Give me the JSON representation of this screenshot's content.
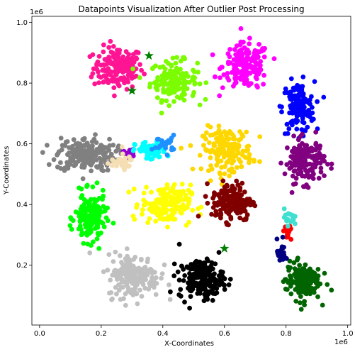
{
  "chart_data": {
    "type": "scatter",
    "title": "Datapoints Visualization After Outlier Post Processing",
    "xlabel": "X-Coordinates",
    "ylabel": "Y-Coordinates",
    "x_offset_label": "1e6",
    "y_offset_label": "1e6",
    "xlim": [
      -25000,
      1010000
    ],
    "ylim": [
      3000,
      1020000
    ],
    "x_ticks": [
      0.0,
      0.2,
      0.4,
      0.6,
      0.8,
      1.0
    ],
    "y_ticks": [
      0.2,
      0.4,
      0.6,
      0.8,
      1.0
    ],
    "grid": false,
    "legend": "none",
    "clusters": [
      {
        "color": "#ff1493",
        "center": [
          255000,
          850000
        ],
        "spread": [
          40000,
          35000
        ],
        "count": 170
      },
      {
        "color": "#7cfc00",
        "center": [
          435000,
          810000
        ],
        "spread": [
          38000,
          32000
        ],
        "count": 150
      },
      {
        "color": "#ff00ff",
        "center": [
          670000,
          855000
        ],
        "spread": [
          38000,
          38000
        ],
        "count": 170
      },
      {
        "color": "#0000ff",
        "center": [
          840000,
          720000
        ],
        "spread": [
          26000,
          42000
        ],
        "count": 140
      },
      {
        "color": "#808080",
        "center": [
          150000,
          565000
        ],
        "spread": [
          48000,
          28000
        ],
        "count": 190
      },
      {
        "color": "#9400d3",
        "center": [
          290000,
          570000
        ],
        "spread": [
          10000,
          9000
        ],
        "count": 14
      },
      {
        "color": "#00ffff",
        "center": [
          360000,
          575000
        ],
        "spread": [
          25000,
          16000
        ],
        "count": 70
      },
      {
        "color": "#1e90ff",
        "center": [
          405000,
          600000
        ],
        "spread": [
          18000,
          14000
        ],
        "count": 24
      },
      {
        "color": "#ffd700",
        "center": [
          610000,
          580000
        ],
        "spread": [
          40000,
          36000
        ],
        "count": 170
      },
      {
        "color": "#800080",
        "center": [
          860000,
          545000
        ],
        "spread": [
          32000,
          36000
        ],
        "count": 160
      },
      {
        "color": "#00ff00",
        "center": [
          165000,
          355000
        ],
        "spread": [
          25000,
          40000
        ],
        "count": 150
      },
      {
        "color": "#ffff00",
        "center": [
          410000,
          400000
        ],
        "spread": [
          40000,
          32000
        ],
        "count": 170
      },
      {
        "color": "#800000",
        "center": [
          625000,
          410000
        ],
        "spread": [
          33000,
          32000
        ],
        "count": 170
      },
      {
        "color": "#c0c0c0",
        "center": [
          305000,
          165000
        ],
        "spread": [
          42000,
          36000
        ],
        "count": 190
      },
      {
        "color": "#000000",
        "center": [
          525000,
          155000
        ],
        "spread": [
          36000,
          32000
        ],
        "count": 180
      },
      {
        "color": "#006400",
        "center": [
          855000,
          150000
        ],
        "spread": [
          28000,
          32000
        ],
        "count": 150
      },
      {
        "color": "#f5deb3",
        "center": [
          260000,
          540000
        ],
        "spread": [
          22000,
          14000
        ],
        "count": 30
      },
      {
        "color": "#ff0000",
        "center": [
          805000,
          305000
        ],
        "spread": [
          7000,
          12000
        ],
        "count": 20
      },
      {
        "color": "#000080",
        "center": [
          785000,
          240000
        ],
        "spread": [
          7000,
          22000
        ],
        "count": 28
      },
      {
        "color": "#40e0d0",
        "center": [
          810000,
          360000
        ],
        "spread": [
          8000,
          14000
        ],
        "count": 14
      }
    ],
    "stars": [
      {
        "color": "#008000",
        "x": 355000,
        "y": 890000
      },
      {
        "color": "#008000",
        "x": 300000,
        "y": 775000
      },
      {
        "color": "#008000",
        "x": 600000,
        "y": 255000
      }
    ]
  }
}
